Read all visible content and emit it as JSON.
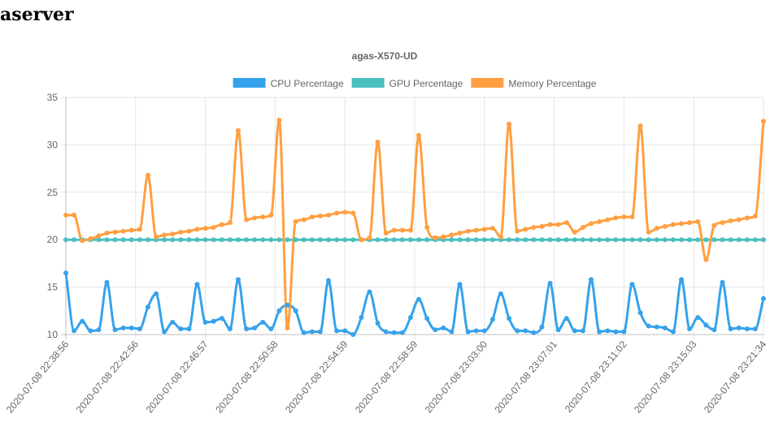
{
  "page": {
    "title": "aserver"
  },
  "chart_data": {
    "type": "line",
    "title": "agas-X570-UD",
    "legend_position": "top",
    "grid": true,
    "ylim": [
      10,
      35
    ],
    "yticks": [
      10,
      15,
      20,
      25,
      30,
      35
    ],
    "xtick_labels": [
      "2020-07-08 22:38:56",
      "2020-07-08 22:42:56",
      "2020-07-08 22:46:57",
      "2020-07-08 22:50:58",
      "2020-07-08 22:54:59",
      "2020-07-08 22:58:59",
      "2020-07-08 23:03:00",
      "2020-07-08 23:07:01",
      "2020-07-08 23:11:02",
      "2020-07-08 23:15:03",
      "2020-07-08 23:21:34"
    ],
    "series": [
      {
        "name": "CPU Percentage",
        "color": "#36a2eb",
        "values": [
          16.5,
          10.4,
          11.4,
          10.4,
          10.5,
          15.5,
          10.5,
          10.7,
          10.7,
          10.6,
          12.9,
          14.3,
          10.3,
          11.3,
          10.6,
          10.6,
          15.3,
          11.3,
          11.4,
          11.7,
          10.6,
          15.8,
          10.6,
          10.7,
          11.3,
          10.6,
          12.5,
          13.1,
          12.5,
          10.2,
          10.3,
          10.3,
          15.7,
          10.4,
          10.4,
          10.0,
          11.8,
          14.5,
          11.2,
          10.3,
          10.2,
          10.2,
          11.8,
          13.7,
          11.7,
          10.5,
          10.7,
          10.3,
          15.3,
          10.3,
          10.4,
          10.4,
          11.6,
          14.3,
          11.7,
          10.4,
          10.4,
          10.2,
          10.8,
          15.4,
          10.5,
          11.7,
          10.4,
          10.4,
          15.8,
          10.3,
          10.4,
          10.3,
          10.3,
          15.3,
          12.3,
          10.9,
          10.8,
          10.7,
          10.3,
          15.8,
          10.6,
          11.8,
          11.0,
          10.5,
          15.5,
          10.6,
          10.7,
          10.6,
          10.6,
          13.8
        ]
      },
      {
        "name": "GPU Percentage",
        "color": "#4bc0c0",
        "values": [
          20,
          20,
          20,
          20,
          20,
          20,
          20,
          20,
          20,
          20,
          20,
          20,
          20,
          20,
          20,
          20,
          20,
          20,
          20,
          20,
          20,
          20,
          20,
          20,
          20,
          20,
          20,
          20,
          20,
          20,
          20,
          20,
          20,
          20,
          20,
          20,
          20,
          20,
          20,
          20,
          20,
          20,
          20,
          20,
          20,
          20,
          20,
          20,
          20,
          20,
          20,
          20,
          20,
          20,
          20,
          20,
          20,
          20,
          20,
          20,
          20,
          20,
          20,
          20,
          20,
          20,
          20,
          20,
          20,
          20,
          20,
          20,
          20,
          20,
          20,
          20,
          20,
          20,
          20,
          20,
          20,
          20,
          20,
          20,
          20,
          20
        ]
      },
      {
        "name": "Memory Percentage",
        "color": "#ff9f40",
        "values": [
          22.6,
          22.6,
          19.9,
          20.1,
          20.4,
          20.7,
          20.8,
          20.9,
          21.0,
          21.1,
          26.8,
          20.3,
          20.5,
          20.6,
          20.8,
          20.9,
          21.1,
          21.2,
          21.3,
          21.6,
          21.8,
          31.5,
          22.1,
          22.3,
          22.4,
          22.6,
          32.6,
          10.7,
          21.9,
          22.1,
          22.4,
          22.5,
          22.6,
          22.8,
          22.9,
          22.8,
          20.0,
          20.2,
          30.3,
          20.7,
          21.0,
          21.0,
          21.0,
          31.0,
          21.3,
          20.2,
          20.3,
          20.5,
          20.7,
          20.9,
          21.0,
          21.1,
          21.2,
          20.3,
          32.2,
          20.9,
          21.1,
          21.3,
          21.4,
          21.6,
          21.6,
          21.8,
          20.8,
          21.3,
          21.7,
          21.9,
          22.1,
          22.3,
          22.4,
          22.4,
          32.0,
          20.8,
          21.2,
          21.4,
          21.6,
          21.7,
          21.8,
          21.9,
          17.9,
          21.5,
          21.8,
          22.0,
          22.1,
          22.3,
          22.5,
          32.5
        ]
      }
    ]
  }
}
